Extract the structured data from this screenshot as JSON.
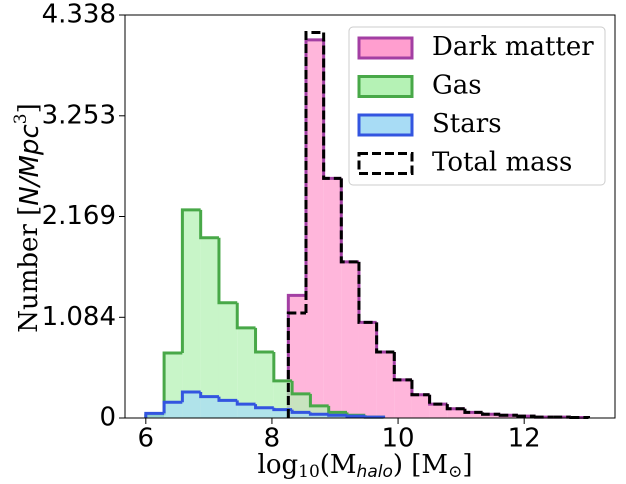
{
  "chart_data": {
    "type": "histogram",
    "x_label": [
      "log",
      "10",
      "(M",
      "halo",
      ") [M",
      "⊙",
      "]"
    ],
    "y_label": [
      "Number [",
      "N/Mpc",
      "3",
      "]"
    ],
    "xlim": [
      5.67,
      13.44
    ],
    "ylim": [
      0,
      4.338
    ],
    "xticks": [
      6,
      8,
      10,
      12
    ],
    "yticks": [
      0,
      1.084,
      2.169,
      3.253,
      4.338
    ],
    "legend": "upper right",
    "series": [
      {
        "name": "Dark matter",
        "color": "#ff9ecf",
        "edgecolor": "#a33fa3",
        "dashed": false,
        "filled": true,
        "bins": [
          8.26,
          8.54,
          8.82,
          9.1,
          9.38,
          9.66,
          9.94,
          10.22,
          10.5,
          10.78,
          11.06,
          11.34,
          11.62,
          11.9,
          12.18,
          12.46,
          12.74,
          13.02
        ],
        "values": [
          1.32,
          4.07,
          2.58,
          1.68,
          1.03,
          0.71,
          0.41,
          0.25,
          0.15,
          0.1,
          0.06,
          0.04,
          0.03,
          0.02,
          0.01,
          0.01,
          0.005
        ]
      },
      {
        "name": "Gas",
        "color": "#b5f2b5",
        "edgecolor": "#48a848",
        "dashed": false,
        "filled": true,
        "bins": [
          6.0,
          6.29,
          6.58,
          6.87,
          7.16,
          7.45,
          7.74,
          8.03,
          8.32,
          8.61,
          8.9,
          9.19,
          9.48,
          9.77
        ],
        "values": [
          0.03,
          0.7,
          2.24,
          1.94,
          1.24,
          0.97,
          0.71,
          0.4,
          0.26,
          0.13,
          0.06,
          0.03,
          0.01
        ]
      },
      {
        "name": "Stars",
        "color": "#a8dcf5",
        "edgecolor": "#3355e0",
        "dashed": false,
        "filled": true,
        "bins": [
          6.0,
          6.29,
          6.58,
          6.87,
          7.16,
          7.45,
          7.74,
          8.03,
          8.32,
          8.61,
          8.9,
          9.19,
          9.48,
          9.77
        ],
        "values": [
          0.05,
          0.17,
          0.28,
          0.23,
          0.19,
          0.15,
          0.11,
          0.09,
          0.06,
          0.04,
          0.03,
          0.02,
          0.01
        ]
      },
      {
        "name": "Total mass",
        "color": "none",
        "edgecolor": "#000000",
        "dashed": true,
        "filled": false,
        "bins": [
          8.26,
          8.54,
          8.82,
          9.1,
          9.38,
          9.66,
          9.94,
          10.22,
          10.5,
          10.78,
          11.06,
          11.34,
          11.62,
          11.9,
          12.18,
          12.46,
          12.74,
          13.02
        ],
        "values": [
          1.13,
          4.15,
          2.58,
          1.68,
          1.03,
          0.71,
          0.41,
          0.25,
          0.15,
          0.1,
          0.06,
          0.04,
          0.03,
          0.02,
          0.01,
          0.01,
          0.005
        ]
      }
    ]
  }
}
